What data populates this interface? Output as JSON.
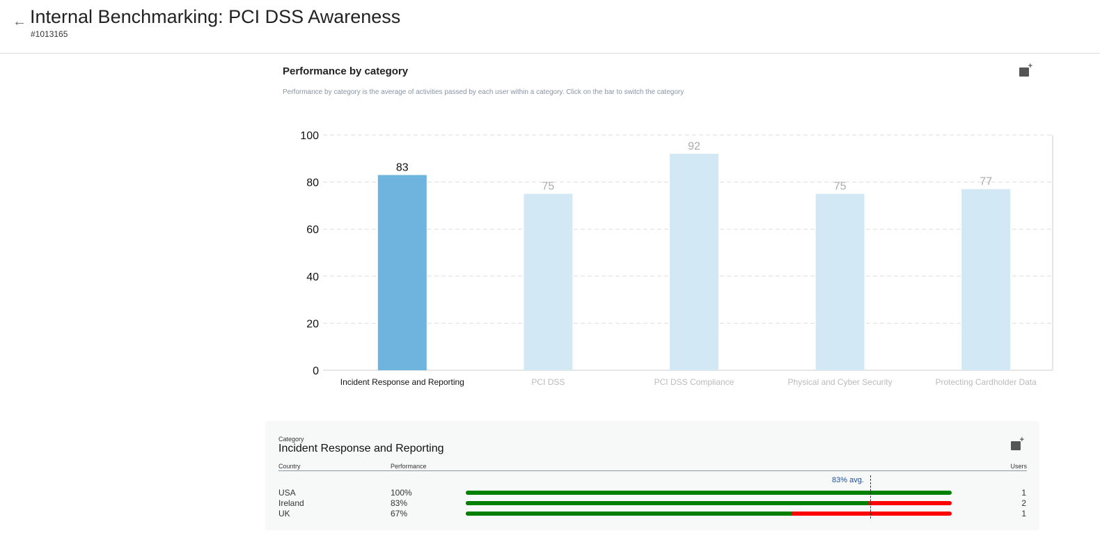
{
  "header": {
    "title": "Internal Benchmarking: PCI DSS Awareness",
    "id": "#1013165"
  },
  "chart_data": {
    "type": "bar",
    "title": "Performance by category",
    "subtitle": "Performance by category is the average of activities passed by each user within a category. Click on the bar to switch the category",
    "categories": [
      "Incident Response and Reporting",
      "PCI DSS",
      "PCI DSS Compliance",
      "Physical and Cyber Security",
      "Protecting Cardholder Data"
    ],
    "values": [
      83,
      75,
      92,
      75,
      77
    ],
    "selected": 0,
    "ylim": [
      0,
      100
    ],
    "yticks": [
      0,
      20,
      40,
      60,
      80,
      100
    ],
    "grid": true,
    "colors": {
      "selected": "#6fb3df",
      "unselected": "#d3e8f5"
    }
  },
  "detail": {
    "category_label": "Category",
    "category": "Incident Response and Reporting",
    "col_country": "Country",
    "col_performance": "Performance",
    "col_users": "Users",
    "avg_label": "83% avg.",
    "avg": 83,
    "rows": [
      {
        "country": "USA",
        "performance": "100%",
        "value": 100,
        "users": "1"
      },
      {
        "country": "Ireland",
        "performance": "83%",
        "value": 83,
        "users": "2"
      },
      {
        "country": "UK",
        "performance": "67%",
        "value": 67,
        "users": "1"
      }
    ],
    "colors": {
      "pass": "#008000",
      "fail": "#ff0000"
    }
  }
}
